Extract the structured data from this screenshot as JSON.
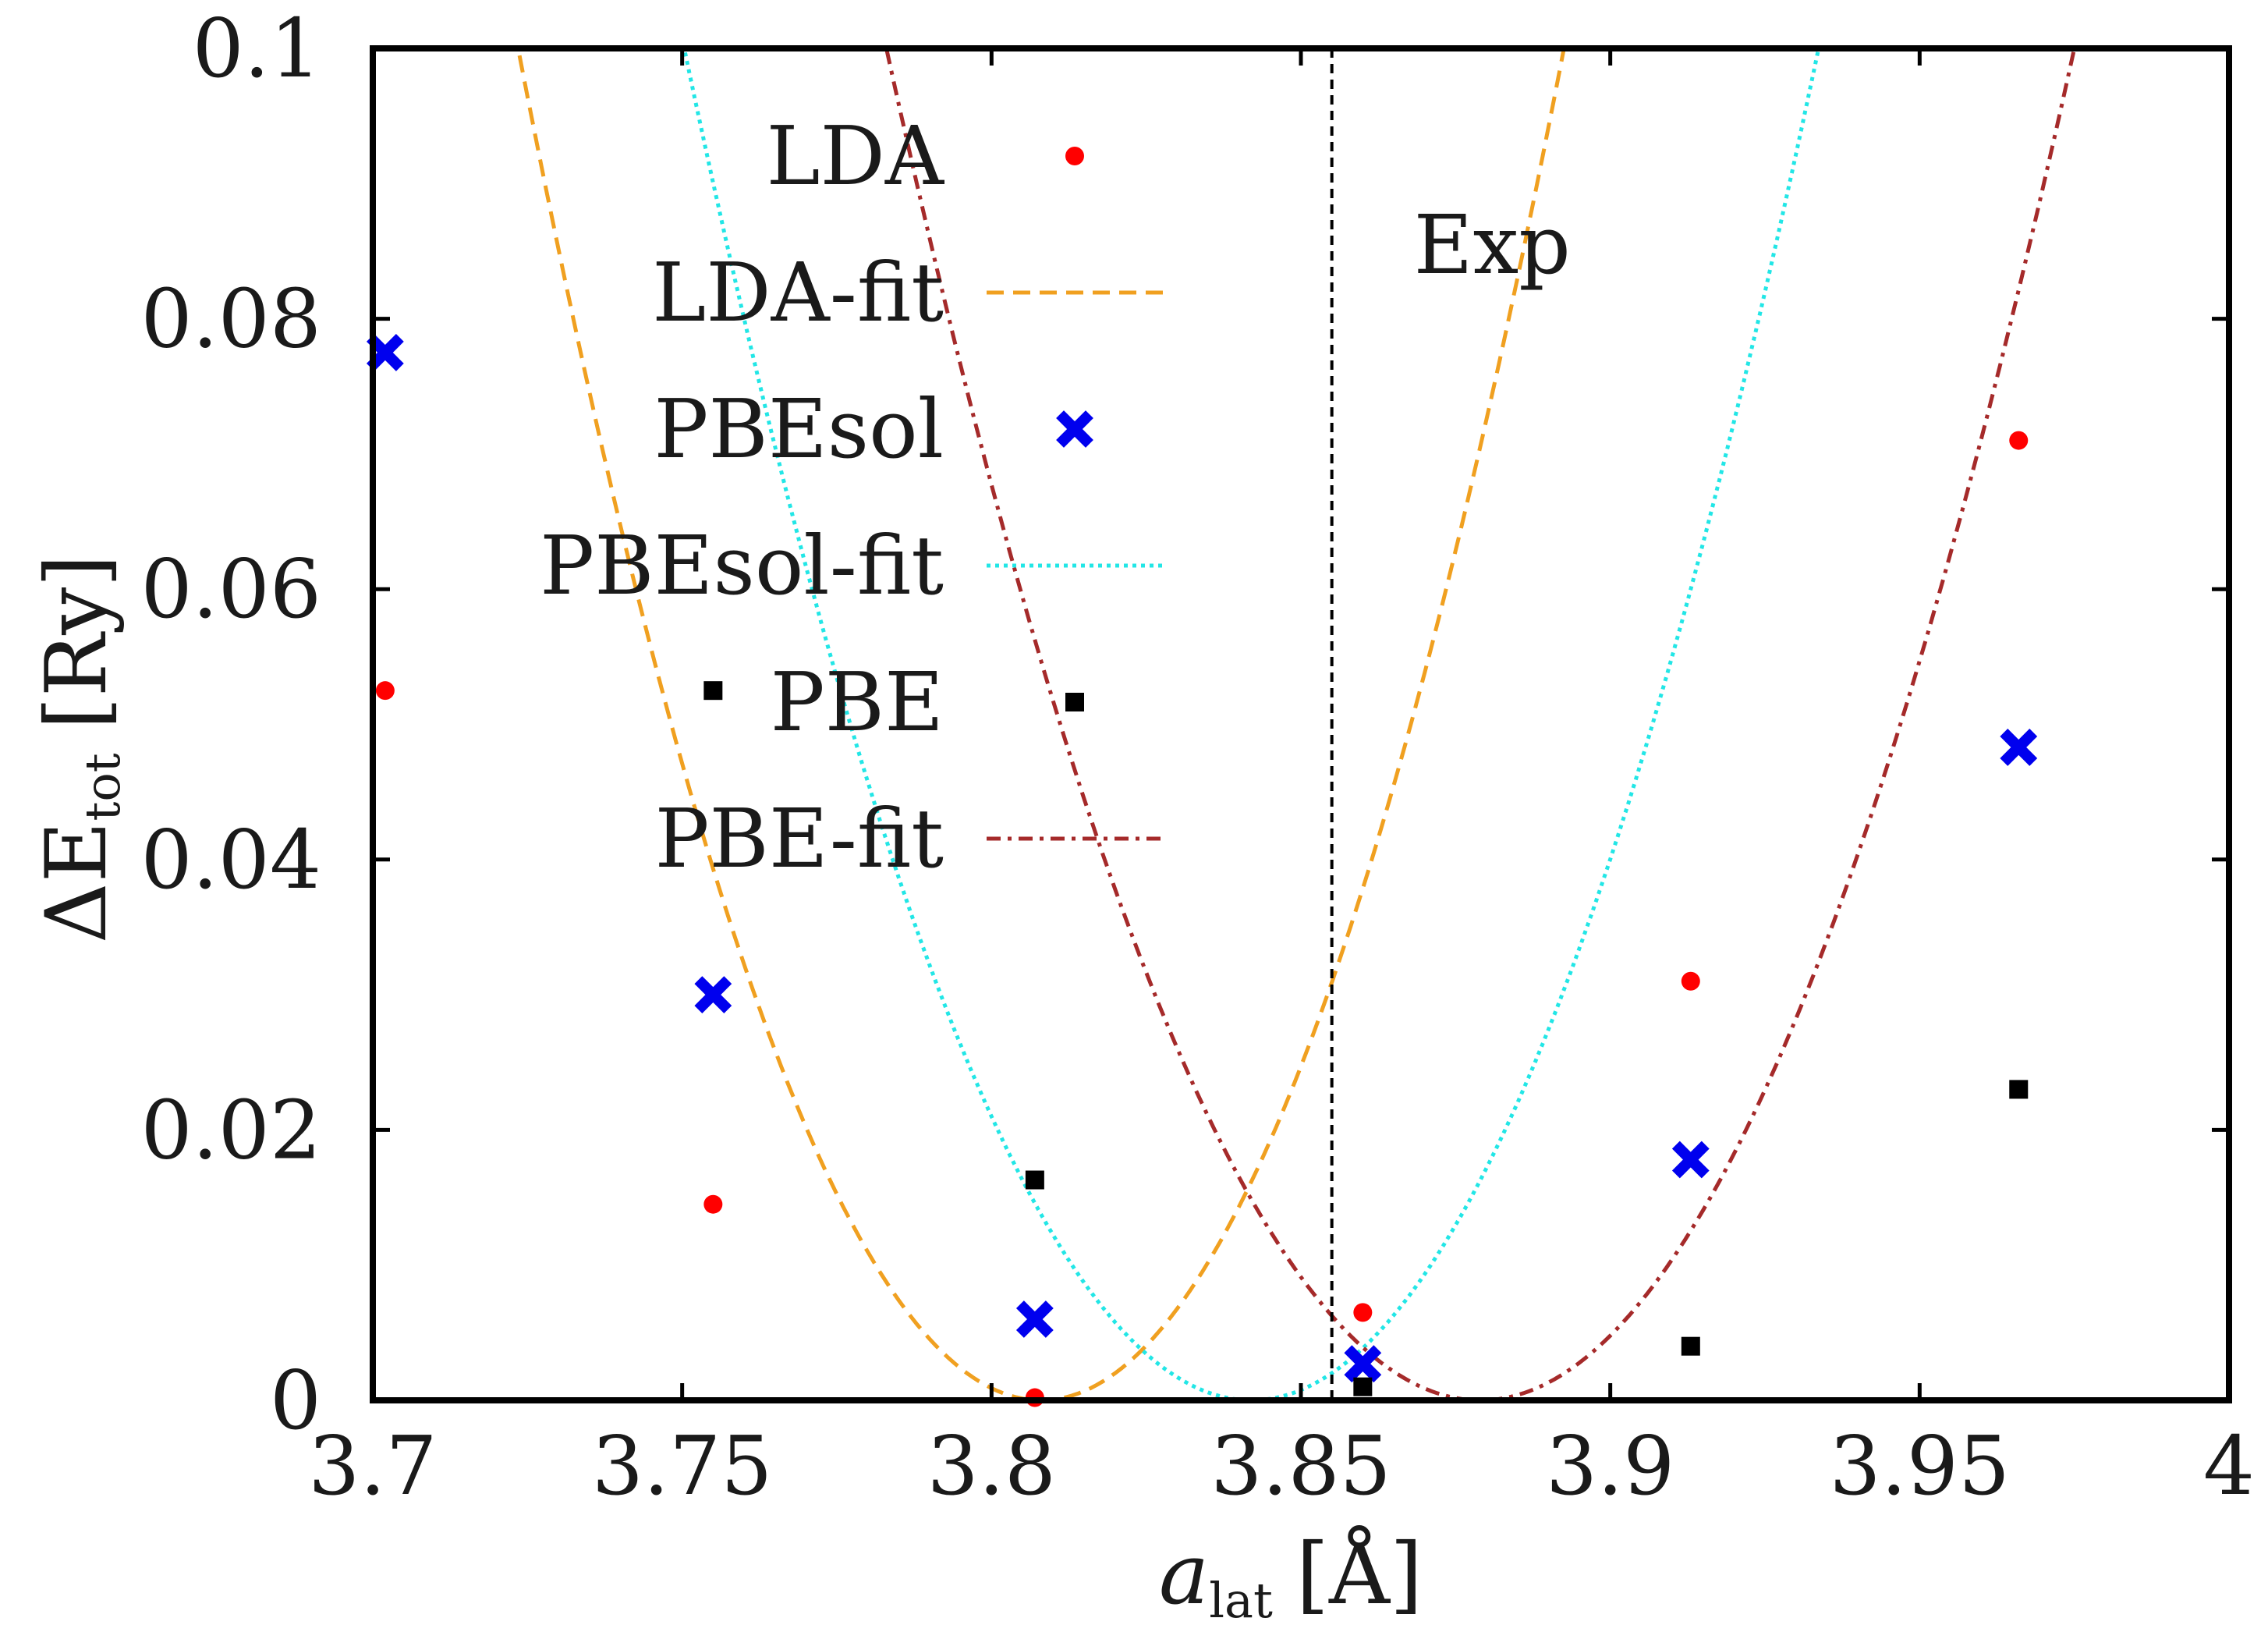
{
  "chart_data": {
    "type": "scatter",
    "title": "",
    "xlabel": {
      "main": "a",
      "sub": "lat",
      "unit": "[Å]"
    },
    "ylabel": {
      "main": "ΔE",
      "sub": "tot",
      "unit": "[Ry]"
    },
    "xlim": [
      3.7,
      4.0
    ],
    "ylim": [
      0,
      0.1
    ],
    "x_ticks": [
      3.7,
      3.75,
      3.8,
      3.85,
      3.9,
      3.95,
      4.0
    ],
    "x_tick_labels": [
      "3.7",
      "3.75",
      "3.8",
      "3.85",
      "3.9",
      "3.95",
      "4"
    ],
    "y_ticks": [
      0,
      0.02,
      0.04,
      0.06,
      0.08,
      0.1
    ],
    "y_tick_labels": [
      "0",
      "0.02",
      "0.04",
      "0.06",
      "0.08",
      "0.1"
    ],
    "grid": false,
    "legend_position": "top-left",
    "series": [
      {
        "name": "LDA",
        "kind": "points",
        "marker": "circle",
        "color": "#ff0000",
        "x": [
          3.702,
          3.755,
          3.807,
          3.86,
          3.913,
          3.966
        ],
        "y": [
          0.0525,
          0.0145,
          0.0002,
          0.0065,
          0.031,
          0.071
        ]
      },
      {
        "name": "LDA-fit",
        "kind": "curve",
        "style": "dashed",
        "color": "#f0a020",
        "a": 14.0,
        "x0": 3.808,
        "y0": 0.0
      },
      {
        "name": "PBEsol",
        "kind": "points",
        "marker": "cross",
        "color": "#0000ee",
        "x": [
          3.702,
          3.755,
          3.807,
          3.86,
          3.913,
          3.966
        ],
        "y": [
          0.0775,
          0.03,
          0.006,
          0.0027,
          0.0178,
          0.0483
        ]
      },
      {
        "name": "PBEsol-fit",
        "kind": "curve",
        "style": "dotted",
        "color": "#22e6e6",
        "a": 11.9,
        "x0": 3.842,
        "y0": 0.0
      },
      {
        "name": "PBE",
        "kind": "points",
        "marker": "square",
        "color": "#000000",
        "x": [
          3.755,
          3.807,
          3.86,
          3.913,
          3.966
        ],
        "y": [
          0.0525,
          0.0163,
          0.001,
          0.004,
          0.023
        ]
      },
      {
        "name": "PBE-fit",
        "kind": "curve",
        "style": "dashdot",
        "color": "#a52a2a",
        "a": 10.85,
        "x0": 3.879,
        "y0": 0.0
      }
    ],
    "reference_line": {
      "label": "Exp",
      "x": 3.855,
      "style": "dashed",
      "color": "#000000"
    }
  }
}
